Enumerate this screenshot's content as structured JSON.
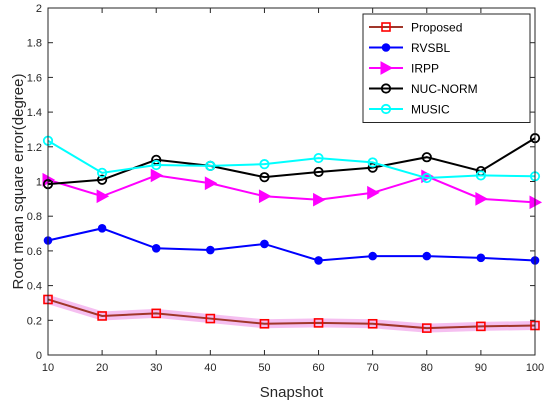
{
  "chart_data": {
    "type": "line",
    "title": "",
    "xlabel": "Snapshot",
    "ylabel": "Root mean square error(degree)",
    "xlim": [
      10,
      100
    ],
    "ylim": [
      0,
      2
    ],
    "xticks": [
      10,
      20,
      30,
      40,
      50,
      60,
      70,
      80,
      90,
      100
    ],
    "yticks": [
      0,
      0.2,
      0.4,
      0.6,
      0.8,
      1,
      1.2,
      1.4,
      1.6,
      1.8,
      2
    ],
    "xtick_labels": [
      "10",
      "20",
      "30",
      "40",
      "50",
      "60",
      "70",
      "80",
      "90",
      "100"
    ],
    "ytick_labels": [
      "0",
      "0.2",
      "0.4",
      "0.6",
      "0.8",
      "1",
      "1.2",
      "1.4",
      "1.6",
      "1.8",
      "2"
    ],
    "grid": false,
    "legend_position": "top-right",
    "x": [
      10,
      20,
      30,
      40,
      50,
      60,
      70,
      80,
      90,
      100
    ],
    "series": [
      {
        "name": "Proposed",
        "color": "#ff0000",
        "line_color": "#a0362a",
        "highlight_color": "#f4b8ee",
        "marker": "square",
        "values": [
          0.32,
          0.225,
          0.24,
          0.21,
          0.18,
          0.185,
          0.18,
          0.155,
          0.165,
          0.17
        ]
      },
      {
        "name": "RVSBL",
        "color": "#0000ff",
        "marker": "circle-filled",
        "values": [
          0.66,
          0.73,
          0.615,
          0.605,
          0.64,
          0.545,
          0.57,
          0.57,
          0.56,
          0.545
        ]
      },
      {
        "name": "IRPP",
        "color": "#ff00ff",
        "marker": "triangle-right",
        "values": [
          1.01,
          0.915,
          1.035,
          0.99,
          0.915,
          0.895,
          0.935,
          1.03,
          0.9,
          0.88
        ]
      },
      {
        "name": "NUC-NORM",
        "color": "#000000",
        "marker": "circle-open",
        "values": [
          0.985,
          1.01,
          1.125,
          1.09,
          1.025,
          1.055,
          1.08,
          1.14,
          1.06,
          1.25
        ]
      },
      {
        "name": "MUSIC",
        "color": "#00ffff",
        "marker": "circle-open",
        "values": [
          1.235,
          1.05,
          1.095,
          1.09,
          1.1,
          1.135,
          1.11,
          1.02,
          1.035,
          1.03
        ]
      }
    ]
  }
}
